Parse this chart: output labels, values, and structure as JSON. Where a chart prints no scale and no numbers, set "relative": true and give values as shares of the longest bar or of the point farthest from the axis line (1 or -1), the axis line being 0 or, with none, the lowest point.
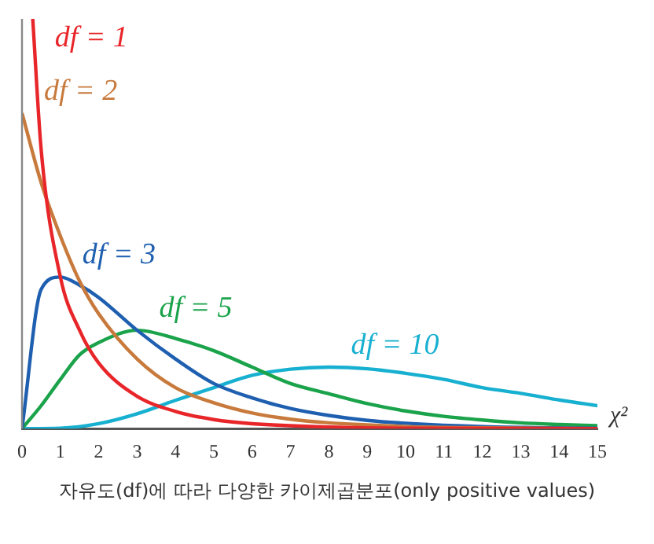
{
  "chart_data": {
    "type": "line",
    "relative": true,
    "xlabel": "χ²",
    "xlim": [
      0,
      15
    ],
    "xticks": [
      0,
      1,
      2,
      3,
      4,
      5,
      6,
      7,
      8,
      9,
      10,
      11,
      12,
      13,
      14,
      15
    ],
    "grid": false,
    "legend": false,
    "marker": "none",
    "line_style": "solid",
    "series": [
      {
        "name": "df = 1",
        "color": "#e8262a",
        "x": [
          0.28,
          0.5,
          1,
          1.5,
          2,
          3,
          4,
          5,
          6,
          8,
          10,
          15
        ],
        "values": [
          1,
          0.68,
          0.37,
          0.24,
          0.16,
          0.079,
          0.042,
          0.022,
          0.012,
          0.004,
          0.001,
          0
        ]
      },
      {
        "name": "df = 2",
        "color": "#c87a3c",
        "x": [
          0,
          0.5,
          1,
          1.5,
          2,
          3,
          4,
          5,
          6,
          7,
          8,
          9,
          10,
          12,
          15
        ],
        "values": [
          0.77,
          0.6,
          0.47,
          0.36,
          0.28,
          0.17,
          0.1,
          0.063,
          0.038,
          0.023,
          0.014,
          0.009,
          0.005,
          0.002,
          0
        ]
      },
      {
        "name": "df = 3",
        "color": "#1f5fb0",
        "x": [
          0,
          0.5,
          1,
          1.5,
          2,
          3,
          4,
          5,
          6,
          7,
          8,
          9,
          10,
          12,
          15
        ],
        "values": [
          0,
          0.34,
          0.37,
          0.35,
          0.32,
          0.24,
          0.17,
          0.11,
          0.075,
          0.049,
          0.032,
          0.02,
          0.013,
          0.005,
          0.001
        ]
      },
      {
        "name": "df = 5",
        "color": "#1aa34a",
        "x": [
          0,
          0.5,
          1,
          1.5,
          2,
          3,
          4,
          5,
          6,
          7,
          8,
          9,
          10,
          11,
          12,
          13,
          14,
          15
        ],
        "values": [
          0,
          0.056,
          0.12,
          0.18,
          0.21,
          0.24,
          0.22,
          0.19,
          0.15,
          0.11,
          0.085,
          0.061,
          0.043,
          0.03,
          0.021,
          0.014,
          0.01,
          0.007
        ]
      },
      {
        "name": "df = 10",
        "color": "#17b0d0",
        "x": [
          0,
          1,
          2,
          3,
          4,
          5,
          6,
          7,
          8,
          9,
          10,
          11,
          12,
          13,
          14,
          15
        ],
        "values": [
          0,
          0.001,
          0.012,
          0.036,
          0.069,
          0.1,
          0.13,
          0.145,
          0.15,
          0.146,
          0.135,
          0.12,
          0.1,
          0.086,
          0.07,
          0.056
        ]
      }
    ],
    "annotations": [
      "자유도(df)에 따라 다양한 카이제곱분포(only positive values)"
    ]
  }
}
